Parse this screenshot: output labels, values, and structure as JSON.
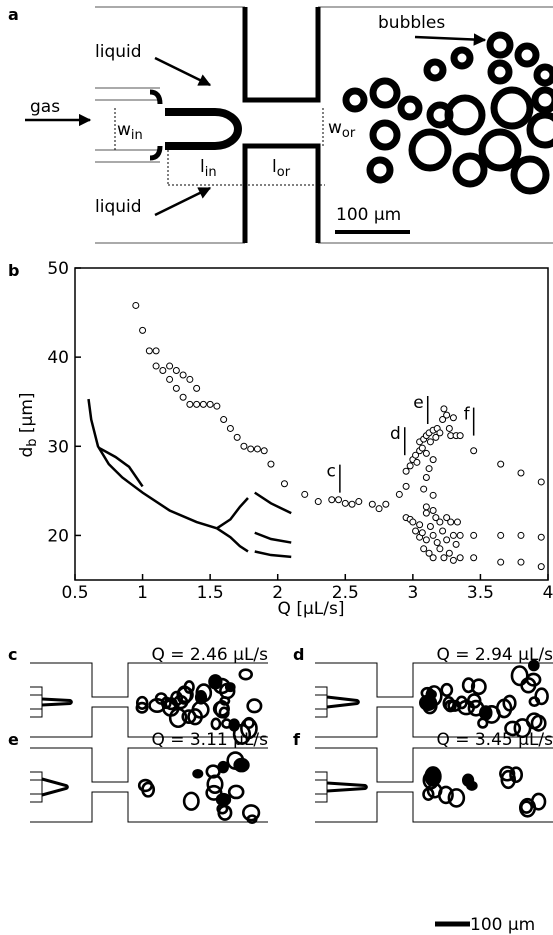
{
  "panel_a": {
    "letter": "a",
    "liquid_top": "liquid",
    "liquid_bottom": "liquid",
    "gas": "gas",
    "bubbles": "bubbles",
    "w_in": [
      "w",
      "in"
    ],
    "w_or": [
      "w",
      "or"
    ],
    "l_in": [
      "l",
      "in"
    ],
    "l_or": [
      "l",
      "or"
    ],
    "scale": "100 μm"
  },
  "chart_data": {
    "type": "scatter",
    "letter": "b",
    "xlabel": "Q [μL/s]",
    "ylabel": [
      "d",
      "b",
      " [μm]"
    ],
    "xlim": [
      0.5,
      4
    ],
    "ylim": [
      15,
      50
    ],
    "xticks": [
      0.5,
      1,
      1.5,
      2,
      2.5,
      3,
      3.5,
      4
    ],
    "yticks": [
      20,
      30,
      40,
      50
    ],
    "grid": false,
    "color": "#000000",
    "x": [
      0.95,
      1.0,
      1.05,
      1.1,
      1.1,
      1.15,
      1.2,
      1.2,
      1.25,
      1.25,
      1.3,
      1.3,
      1.35,
      1.35,
      1.4,
      1.4,
      1.45,
      1.5,
      1.55,
      1.6,
      1.65,
      1.7,
      1.75,
      1.8,
      1.85,
      1.9,
      1.95,
      2.05,
      2.2,
      2.3,
      2.4,
      2.45,
      2.5,
      2.55,
      2.6,
      2.7,
      2.75,
      2.8,
      2.9,
      2.95,
      2.95,
      2.98,
      3.0,
      3.02,
      3.03,
      3.05,
      3.05,
      3.07,
      3.08,
      3.1,
      3.1,
      3.12,
      3.13,
      3.15,
      3.15,
      3.17,
      3.18,
      3.2,
      3.22,
      3.23,
      3.25,
      3.27,
      3.28,
      3.3,
      3.32,
      3.35,
      3.12,
      3.1,
      3.08,
      3.15,
      2.95,
      2.98,
      3.0,
      3.02,
      3.05,
      3.05,
      3.07,
      3.08,
      3.1,
      3.1,
      3.12,
      3.13,
      3.15,
      3.15,
      3.17,
      3.18,
      3.2,
      3.2,
      3.22,
      3.23,
      3.25,
      3.25,
      3.27,
      3.28,
      3.3,
      3.3,
      3.32,
      3.33,
      3.35,
      3.35,
      3.1,
      3.15,
      3.45,
      3.65,
      3.8,
      3.95,
      3.45,
      3.45,
      3.65,
      3.65,
      3.8,
      3.8,
      3.95,
      3.95
    ],
    "values": [
      45.8,
      43,
      40.7,
      40.7,
      39,
      38.5,
      39,
      37.5,
      38.5,
      36.5,
      38,
      35.5,
      37.5,
      34.7,
      36.5,
      34.7,
      34.7,
      34.7,
      34.5,
      33,
      32,
      31,
      30,
      29.7,
      29.7,
      29.5,
      28,
      25.8,
      24.6,
      23.8,
      24,
      24,
      23.6,
      23.5,
      23.8,
      23.5,
      23,
      23.5,
      24.6,
      25.5,
      27.2,
      27.8,
      28.5,
      29,
      28.2,
      29.5,
      30.5,
      29.8,
      30.8,
      31.2,
      29.2,
      31.5,
      30.5,
      31.8,
      28.5,
      31,
      32,
      31.5,
      33,
      34.2,
      33.5,
      32,
      31.2,
      33.2,
      31.2,
      31.2,
      27.5,
      26.5,
      25.2,
      24.5,
      22,
      21.8,
      21.5,
      20.5,
      21.2,
      19.8,
      20.3,
      18.5,
      22.5,
      19.5,
      18,
      21,
      20,
      17.5,
      22,
      19.2,
      21.5,
      18.5,
      20.5,
      17.5,
      22,
      19.5,
      18,
      21.5,
      20,
      17.2,
      19,
      21.5,
      17.5,
      20,
      23.2,
      22.8,
      29.5,
      28,
      27,
      26,
      20,
      17.5,
      20,
      17,
      20,
      17,
      19.8,
      16.5
    ],
    "curves": [
      {
        "x": [
          0.6,
          0.62,
          0.67,
          0.75,
          0.85,
          1.0,
          1.2,
          1.4,
          1.55
        ],
        "values": [
          35.3,
          33,
          30,
          28,
          26.5,
          24.8,
          22.8,
          21.5,
          20.8
        ]
      },
      {
        "x": [
          0.68,
          0.8,
          0.9,
          1.0
        ],
        "values": [
          29.8,
          28.8,
          27.7,
          25.5
        ]
      },
      {
        "x": [
          1.55,
          1.65,
          1.72,
          1.78
        ],
        "values": [
          20.8,
          21.8,
          23.2,
          24.2
        ]
      },
      {
        "x": [
          1.55,
          1.65,
          1.72,
          1.78
        ],
        "values": [
          20.8,
          19.8,
          18.8,
          18.2
        ]
      },
      {
        "x": [
          1.83,
          1.95,
          2.1
        ],
        "values": [
          24.8,
          23.6,
          22.5
        ]
      },
      {
        "x": [
          1.83,
          1.95,
          2.1
        ],
        "values": [
          20.3,
          19.6,
          19.2
        ]
      },
      {
        "x": [
          1.83,
          1.95,
          2.1
        ],
        "values": [
          18.2,
          17.8,
          17.6
        ]
      }
    ],
    "annotations": [
      {
        "text": "c",
        "x": 2.46,
        "y": 24.8
      },
      {
        "text": "d",
        "x": 2.94,
        "y": 29
      },
      {
        "text": "e",
        "x": 3.11,
        "y": 32.5
      },
      {
        "text": "f",
        "x": 3.45,
        "y": 31.2
      }
    ]
  },
  "panels_small": [
    {
      "letter": "c",
      "label": "Q = 2.46 μL/s"
    },
    {
      "letter": "d",
      "label": "Q = 2.94 μL/s"
    },
    {
      "letter": "e",
      "label": "Q = 3.11 μL/s"
    },
    {
      "letter": "f",
      "label": "Q = 3.45 μL/s"
    }
  ],
  "scale_bottom": "100 μm"
}
